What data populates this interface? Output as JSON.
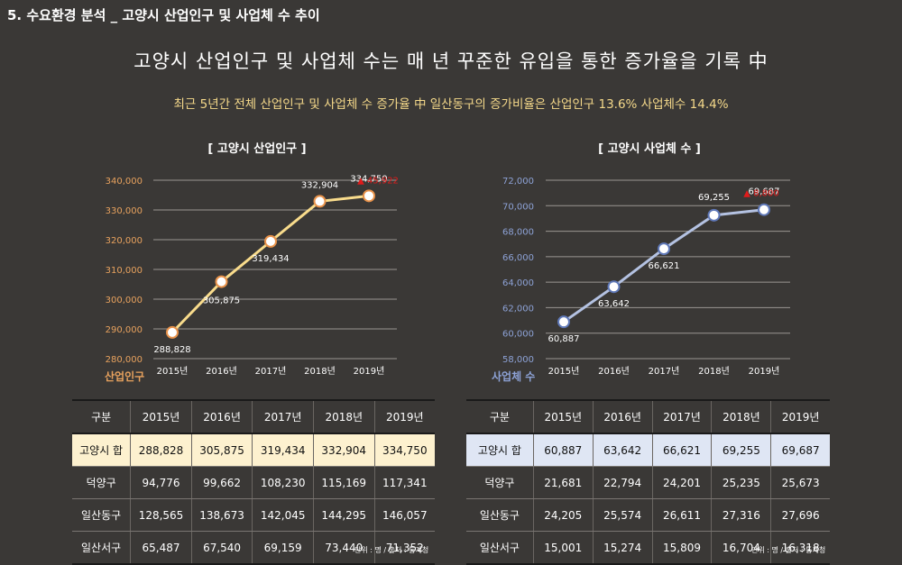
{
  "header": {
    "section_title": "5. 수요환경 분석 _  고양시 산업인구 및 사업체 수 추이",
    "headline": "고양시 산업인구 및 사업체 수는  매 년 꾸준한 유입을 통한 증가율을 기록 中",
    "subline": "최근 5년간 전체 산업인구 및 사업체 수 증가율 中 일산동구의 증가비율은 산업인구 13.6% 사업체수 14.4%"
  },
  "chart_data": [
    {
      "type": "line",
      "title": "[ 고양시 산업인구 ]",
      "ylabel": "산업인구",
      "categories": [
        "2015년",
        "2016년",
        "2017년",
        "2018년",
        "2019년"
      ],
      "series": [
        {
          "values": [
            288828,
            305875,
            319434,
            332904,
            334750
          ]
        }
      ],
      "value_labels": [
        "288,828",
        "305,875",
        "319,434",
        "332,904",
        "334,750"
      ],
      "y_ticks": [
        "280,000",
        "290,000",
        "300,000",
        "310,000",
        "320,000",
        "330,000",
        "340,000"
      ],
      "ylim": [
        280000,
        340000
      ],
      "increase_annotation": "▲ 45,922",
      "line_color": "#f9dc8c",
      "axis_label_color": "#e8a25e",
      "grid": true
    },
    {
      "type": "line",
      "title": "[ 고양시 사업체 수 ]",
      "ylabel": "사업체 수",
      "categories": [
        "2015년",
        "2016년",
        "2017년",
        "2018년",
        "2019년"
      ],
      "series": [
        {
          "values": [
            60887,
            63642,
            66621,
            69255,
            69687
          ]
        }
      ],
      "value_labels": [
        "60,887",
        "63,642",
        "66,621",
        "69,255",
        "69,687"
      ],
      "y_ticks": [
        "58,000",
        "60,000",
        "62,000",
        "64,000",
        "66,000",
        "68,000",
        "70,000",
        "72,000"
      ],
      "ylim": [
        58000,
        72000
      ],
      "increase_annotation": "▲ 8,800",
      "line_color": "#b4c2e2",
      "axis_label_color": "#8da2d6",
      "grid": true
    }
  ],
  "tables": {
    "left": {
      "headers": [
        "구분",
        "2015년",
        "2016년",
        "2017년",
        "2018년",
        "2019년"
      ],
      "rows": [
        [
          "고양시 합",
          "288,828",
          "305,875",
          "319,434",
          "332,904",
          "334,750"
        ],
        [
          "덕양구",
          "94,776",
          "99,662",
          "108,230",
          "115,169",
          "117,341"
        ],
        [
          "일산동구",
          "128,565",
          "138,673",
          "142,045",
          "144,295",
          "146,057"
        ],
        [
          "일산서구",
          "65,487",
          "67,540",
          "69,159",
          "73,440",
          "71,352"
        ]
      ],
      "note": "단위 : 명 / 출처 : 통계청"
    },
    "right": {
      "headers": [
        "구분",
        "2015년",
        "2016년",
        "2017년",
        "2018년",
        "2019년"
      ],
      "rows": [
        [
          "고양시 합",
          "60,887",
          "63,642",
          "66,621",
          "69,255",
          "69,687"
        ],
        [
          "덕양구",
          "21,681",
          "22,794",
          "24,201",
          "25,235",
          "25,673"
        ],
        [
          "일산동구",
          "24,205",
          "25,574",
          "26,611",
          "27,316",
          "27,696"
        ],
        [
          "일산서구",
          "15,001",
          "15,274",
          "15,809",
          "16,704",
          "16,318"
        ]
      ],
      "note": "단위 : 명 / 출처 : 통계청"
    }
  },
  "colors": {
    "background": "#3a3836",
    "increase": "#e01b1b"
  }
}
